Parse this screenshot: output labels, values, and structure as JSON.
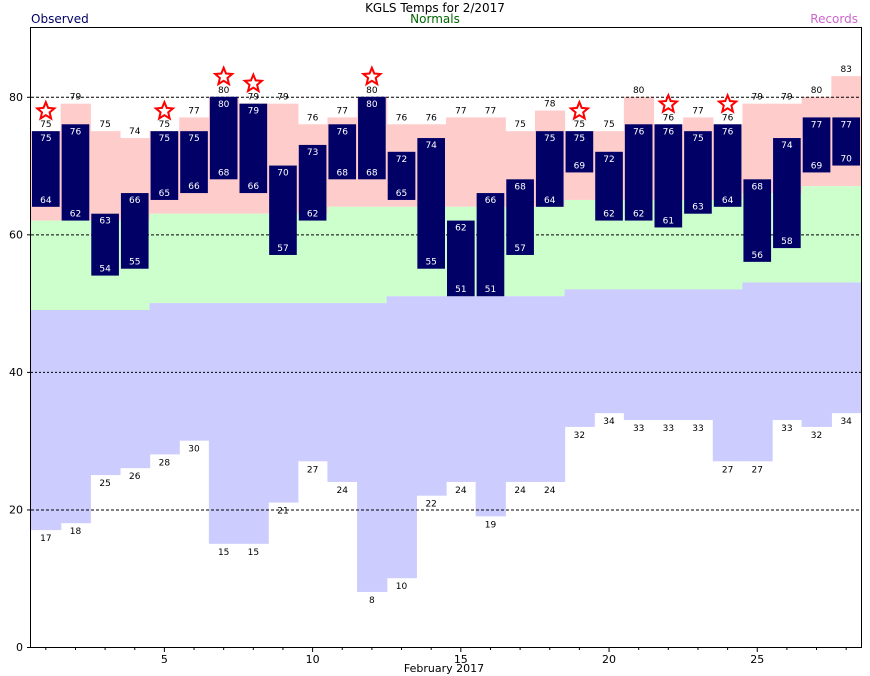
{
  "title": "KGLS Temps for 2/2017",
  "legend": {
    "observed": "Observed",
    "normals": "Normals",
    "records": "Records"
  },
  "colors": {
    "observed_bar": "#000066",
    "normal_band": "#ccffcc",
    "record_high_band": "#ffcccc",
    "record_low_band": "#ccccff",
    "record_star": "#ff0000",
    "observed_label": "#000066",
    "normals_label": "#006600",
    "records_label": "#cc66cc"
  },
  "chart_data": {
    "type": "bar",
    "title": "KGLS Temps for 2/2017",
    "xlabel": "February 2017",
    "ylabel": "",
    "ylim": [
      0,
      90
    ],
    "y_ticks": [
      0,
      20,
      40,
      60,
      80
    ],
    "x_ticks": [
      5,
      10,
      15,
      20,
      25
    ],
    "grid": "dashed at 20, 60, 80 and dotted at 40",
    "days": [
      1,
      2,
      3,
      4,
      5,
      6,
      7,
      8,
      9,
      10,
      11,
      12,
      13,
      14,
      15,
      16,
      17,
      18,
      19,
      20,
      21,
      22,
      23,
      24,
      25,
      26,
      27,
      28
    ],
    "series": [
      {
        "name": "Observed high",
        "values": [
          75,
          76,
          63,
          66,
          75,
          75,
          80,
          79,
          70,
          73,
          76,
          80,
          72,
          74,
          62,
          66,
          68,
          75,
          75,
          72,
          76,
          76,
          75,
          76,
          68,
          74,
          77,
          77
        ]
      },
      {
        "name": "Observed low",
        "values": [
          64,
          62,
          54,
          55,
          65,
          66,
          68,
          66,
          57,
          62,
          68,
          68,
          65,
          55,
          51,
          51,
          57,
          64,
          69,
          62,
          62,
          61,
          63,
          64,
          56,
          58,
          69,
          70
        ]
      },
      {
        "name": "Normal high",
        "values": [
          62,
          62,
          62,
          62,
          63,
          63,
          63,
          63,
          63,
          63,
          64,
          64,
          64,
          64,
          64,
          64,
          64,
          64,
          65,
          65,
          65,
          65,
          65,
          65,
          66,
          66,
          67,
          67
        ]
      },
      {
        "name": "Normal low",
        "values": [
          49,
          49,
          49,
          49,
          50,
          50,
          50,
          50,
          50,
          50,
          50,
          50,
          51,
          51,
          51,
          51,
          51,
          51,
          52,
          52,
          52,
          52,
          52,
          52,
          53,
          53,
          53,
          53
        ]
      },
      {
        "name": "Record high",
        "values": [
          75,
          79,
          75,
          74,
          75,
          77,
          80,
          79,
          79,
          76,
          77,
          80,
          76,
          76,
          77,
          77,
          75,
          78,
          75,
          75,
          80,
          76,
          77,
          76,
          79,
          79,
          80,
          83
        ]
      },
      {
        "name": "Record low",
        "values": [
          17,
          18,
          25,
          26,
          28,
          30,
          15,
          15,
          21,
          27,
          24,
          8,
          10,
          22,
          24,
          19,
          24,
          24,
          32,
          34,
          33,
          33,
          33,
          27,
          27,
          33,
          32,
          34
        ]
      }
    ],
    "record_high_set_days": [
      1,
      5,
      7,
      8,
      12,
      19,
      22,
      24
    ]
  }
}
